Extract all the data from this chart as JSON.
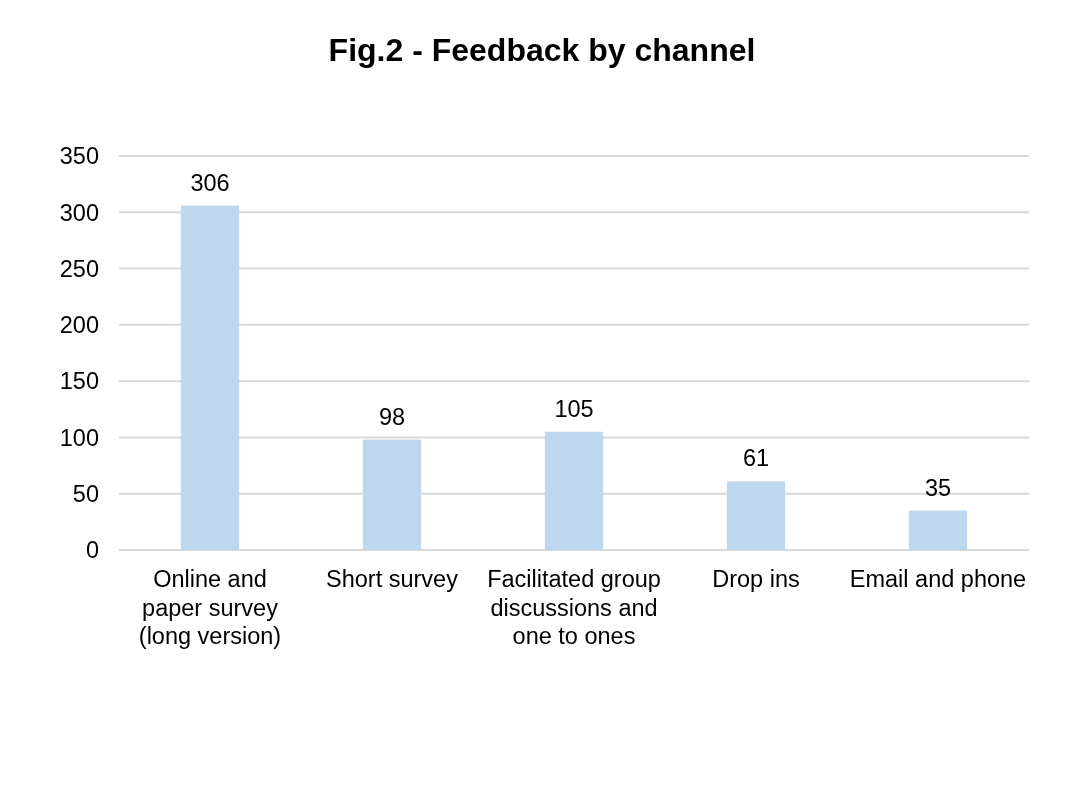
{
  "chart_data": {
    "type": "bar",
    "title": "Fig.2 - Feedback by channel",
    "categories": [
      "Online and paper survey (long version)",
      "Short survey",
      "Facilitated group discussions and one to ones",
      "Drop ins",
      "Email and phone"
    ],
    "values": [
      306,
      98,
      105,
      61,
      35
    ],
    "color": "#bdd7ee",
    "ylim": [
      0,
      350
    ],
    "yticks": [
      0,
      50,
      100,
      150,
      200,
      250,
      300,
      350
    ],
    "grid": "y",
    "data_labels": true
  }
}
